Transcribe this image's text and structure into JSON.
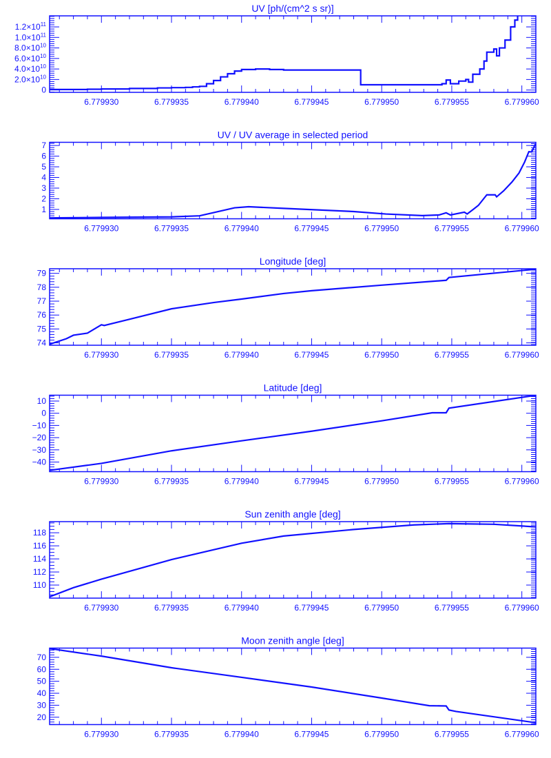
{
  "colors": {
    "ink": "#1010ff",
    "background": "#ffffff"
  },
  "chart_data": [
    {
      "type": "line",
      "step": true,
      "title": "UV [ph/(cm^2 s sr)]",
      "xlim": [
        6.7799263,
        6.779961
      ],
      "ylim": [
        -4400000000.0,
        141000000000.0
      ],
      "xticks": {
        "values": [
          6.77993,
          6.779935,
          6.77994,
          6.779945,
          6.77995,
          6.779955,
          6.77996
        ],
        "labels": [
          "6.779930",
          "6.779935",
          "6.779940",
          "6.779945",
          "6.779950",
          "6.779955",
          "6.779960"
        ]
      },
      "yticks": {
        "values": [
          0,
          20000000000.0,
          40000000000.0,
          60000000000.0,
          80000000000.0,
          100000000000.0,
          120000000000.0
        ],
        "labels": [
          {
            "base": "0",
            "exp": ""
          },
          {
            "base": "2.0×10",
            "exp": "10"
          },
          {
            "base": "4.0×10",
            "exp": "10"
          },
          {
            "base": "6.0×10",
            "exp": "10"
          },
          {
            "base": "8.0×10",
            "exp": "10"
          },
          {
            "base": "1.0×10",
            "exp": "11"
          },
          {
            "base": "1.2×10",
            "exp": "11"
          }
        ]
      },
      "x": [
        6.7799263,
        6.779927,
        6.779928,
        6.779929,
        6.77993,
        6.779932,
        6.779934,
        6.779935,
        6.779936,
        6.7799365,
        6.779937,
        6.7799375,
        6.779938,
        6.7799385,
        6.779939,
        6.7799395,
        6.77994,
        6.779941,
        6.779942,
        6.779943,
        6.7799484,
        6.7799485,
        6.779953,
        6.7799539,
        6.7799543,
        6.7799546,
        6.7799549,
        6.7799555,
        6.779956,
        6.7799562,
        6.7799565,
        6.779957,
        6.7799573,
        6.7799575,
        6.779958,
        6.7799582,
        6.7799584,
        6.7799588,
        6.7799592,
        6.7799595,
        6.7799597
      ],
      "y": [
        1000000000.0,
        1000000000.0,
        1000000000.0,
        1500000000.0,
        2000000000.0,
        3000000000.0,
        4000000000.0,
        4500000000.0,
        5000000000.0,
        6000000000.0,
        7000000000.0,
        12000000000.0,
        18000000000.0,
        25000000000.0,
        31000000000.0,
        36000000000.0,
        39000000000.0,
        40000000000.0,
        39000000000.0,
        38000000000.0,
        38000000000.0,
        10000000000.0,
        10000000000.0,
        10000000000.0,
        12000000000.0,
        19000000000.0,
        12000000000.0,
        17000000000.0,
        20000000000.0,
        15000000000.0,
        30000000000.0,
        40000000000.0,
        55000000000.0,
        72000000000.0,
        78000000000.0,
        65000000000.0,
        80000000000.0,
        95000000000.0,
        120000000000.0,
        133000000000.0,
        141000000000.0
      ]
    },
    {
      "type": "line",
      "title": "UV / UV average in selected period",
      "xlim": [
        6.7799263,
        6.779961
      ],
      "ylim": [
        0.12,
        7.3
      ],
      "xticks": {
        "values": [
          6.77993,
          6.779935,
          6.77994,
          6.779945,
          6.77995,
          6.779955,
          6.77996
        ],
        "labels": [
          "6.779930",
          "6.779935",
          "6.779940",
          "6.779945",
          "6.779950",
          "6.779955",
          "6.779960"
        ]
      },
      "yticks": {
        "values": [
          1,
          2,
          3,
          4,
          5,
          6,
          7
        ],
        "labels": [
          {
            "base": "1"
          },
          {
            "base": "2"
          },
          {
            "base": "3"
          },
          {
            "base": "4"
          },
          {
            "base": "5"
          },
          {
            "base": "6"
          },
          {
            "base": "7"
          }
        ]
      },
      "x": [
        6.7799263,
        6.77993,
        6.779935,
        6.779937,
        6.779938,
        6.7799395,
        6.7799405,
        6.779943,
        6.779948,
        6.7799503,
        6.7799529,
        6.7799541,
        6.7799546,
        6.7799549,
        6.7799559,
        6.7799561,
        6.7799565,
        6.7799569,
        6.7799575,
        6.7799581,
        6.7799582,
        6.7799587,
        6.7799593,
        6.7799598,
        6.7799602,
        6.7799605,
        6.7799607,
        6.779961
      ],
      "y": [
        0.2,
        0.25,
        0.3,
        0.4,
        0.7,
        1.15,
        1.25,
        1.1,
        0.8,
        0.57,
        0.42,
        0.48,
        0.68,
        0.48,
        0.74,
        0.57,
        0.97,
        1.38,
        2.37,
        2.37,
        2.18,
        2.74,
        3.58,
        4.42,
        5.45,
        6.42,
        6.4,
        7.2
      ]
    },
    {
      "type": "line",
      "title": "Longitude [deg]",
      "xlim": [
        6.7799263,
        6.779961
      ],
      "ylim": [
        73.83,
        79.33
      ],
      "xticks": {
        "values": [
          6.77993,
          6.779935,
          6.77994,
          6.779945,
          6.77995,
          6.779955,
          6.77996
        ],
        "labels": [
          "6.779930",
          "6.779935",
          "6.779940",
          "6.779945",
          "6.779950",
          "6.779955",
          "6.779960"
        ]
      },
      "yticks": {
        "values": [
          74,
          75,
          76,
          77,
          78,
          79
        ],
        "labels": [
          {
            "base": "74"
          },
          {
            "base": "75"
          },
          {
            "base": "76"
          },
          {
            "base": "77"
          },
          {
            "base": "78"
          },
          {
            "base": "79"
          }
        ]
      },
      "x": [
        6.7799263,
        6.7799275,
        6.779928,
        6.779929,
        6.77993,
        6.7799302,
        6.779932,
        6.779935,
        6.779938,
        6.77994,
        6.779943,
        6.779945,
        6.77995,
        6.7799546,
        6.7799548,
        6.779961
      ],
      "y": [
        73.9,
        74.3,
        74.55,
        74.7,
        75.3,
        75.25,
        75.7,
        76.45,
        76.9,
        77.15,
        77.55,
        77.75,
        78.15,
        78.5,
        78.7,
        79.3
      ]
    },
    {
      "type": "line",
      "title": "Latitude [deg]",
      "xlim": [
        6.7799263,
        6.779961
      ],
      "ylim": [
        -47.9,
        14.8
      ],
      "xticks": {
        "values": [
          6.77993,
          6.779935,
          6.77994,
          6.779945,
          6.77995,
          6.779955,
          6.77996
        ],
        "labels": [
          "6.779930",
          "6.779935",
          "6.779940",
          "6.779945",
          "6.779950",
          "6.779955",
          "6.779960"
        ]
      },
      "yticks": {
        "values": [
          10,
          0,
          -10,
          -20,
          -30,
          -40
        ],
        "labels": [
          {
            "base": "10"
          },
          {
            "base": "0"
          },
          {
            "base": "−10"
          },
          {
            "base": "−20"
          },
          {
            "base": "−30"
          },
          {
            "base": "−40"
          }
        ]
      },
      "x": [
        6.7799263,
        6.77993,
        6.779935,
        6.77994,
        6.779945,
        6.77995,
        6.7799536,
        6.7799546,
        6.7799548,
        6.779961
      ],
      "y": [
        -46.8,
        -41.1,
        -30.8,
        -22.6,
        -14.7,
        -6.2,
        0.4,
        0.4,
        4.2,
        14.7
      ]
    },
    {
      "type": "line",
      "title": "Sun zenith angle [deg]",
      "xlim": [
        6.7799263,
        6.779961
      ],
      "ylim": [
        108.0,
        119.7
      ],
      "xticks": {
        "values": [
          6.77993,
          6.779935,
          6.77994,
          6.779945,
          6.77995,
          6.779955,
          6.77996
        ],
        "labels": [
          "6.779930",
          "6.779935",
          "6.779940",
          "6.779945",
          "6.779950",
          "6.779955",
          "6.779960"
        ]
      },
      "yticks": {
        "values": [
          110,
          112,
          114,
          116,
          118
        ],
        "labels": [
          {
            "base": "110"
          },
          {
            "base": "112"
          },
          {
            "base": "114"
          },
          {
            "base": "116"
          },
          {
            "base": "118"
          }
        ]
      },
      "x": [
        6.7799263,
        6.779928,
        6.77993,
        6.779935,
        6.77994,
        6.779943,
        6.779948,
        6.7799523,
        6.7799548,
        6.779958,
        6.779961
      ],
      "y": [
        108.2,
        109.6,
        110.9,
        113.9,
        116.4,
        117.5,
        118.5,
        119.2,
        119.4,
        119.3,
        118.9
      ]
    },
    {
      "type": "line",
      "title": "Moon zenith angle [deg]",
      "xlim": [
        6.7799263,
        6.779961
      ],
      "ylim": [
        13.85,
        77.7
      ],
      "xticks": {
        "values": [
          6.77993,
          6.779935,
          6.77994,
          6.779945,
          6.77995,
          6.779955,
          6.77996
        ],
        "labels": [
          "6.779930",
          "6.779935",
          "6.779940",
          "6.779945",
          "6.779950",
          "6.779955",
          "6.779960"
        ]
      },
      "yticks": {
        "values": [
          20,
          30,
          40,
          50,
          60,
          70
        ],
        "labels": [
          {
            "base": "20"
          },
          {
            "base": "30"
          },
          {
            "base": "40"
          },
          {
            "base": "50"
          },
          {
            "base": "60"
          },
          {
            "base": "70"
          }
        ]
      },
      "x": [
        6.7799263,
        6.77993,
        6.779935,
        6.77994,
        6.779945,
        6.77995,
        6.7799534,
        6.7799546,
        6.7799548,
        6.7799553,
        6.779961
      ],
      "y": [
        77.3,
        71.0,
        61.3,
        53.3,
        45.2,
        36.0,
        29.6,
        29.4,
        26.0,
        24.8,
        15.4
      ]
    }
  ]
}
